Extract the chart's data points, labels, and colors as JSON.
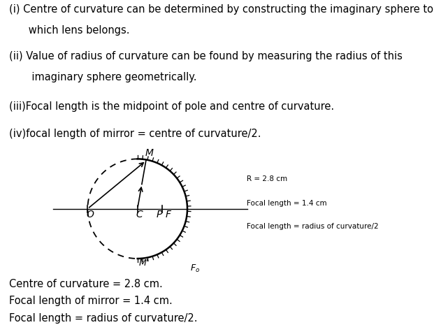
{
  "background_color": "#ffffff",
  "text_lines": [
    "(i) Centre of curvature can be determined by constructing the imaginary sphere to",
    "      which lens belongs.",
    "(ii) Value of radius of curvature can be found by measuring the radius of this",
    "       imaginary sphere geometrically.",
    "(iii)Focal length is the midpoint of pole and centre of curvature.",
    "(iv)focal length of mirror = centre of curvature/2."
  ],
  "bottom_lines": [
    "Centre of curvature = 2.8 cm.",
    "Focal length of mirror = 1.4 cm.",
    "Focal length = radius of curvature/2."
  ],
  "diagram_note": [
    "R = 2.8 cm",
    "Focal length = 1.4 cm",
    "Focal length = radius of curvature/2"
  ],
  "font_size_text": 10.5,
  "font_size_note": 7.5,
  "font_size_label": 10
}
